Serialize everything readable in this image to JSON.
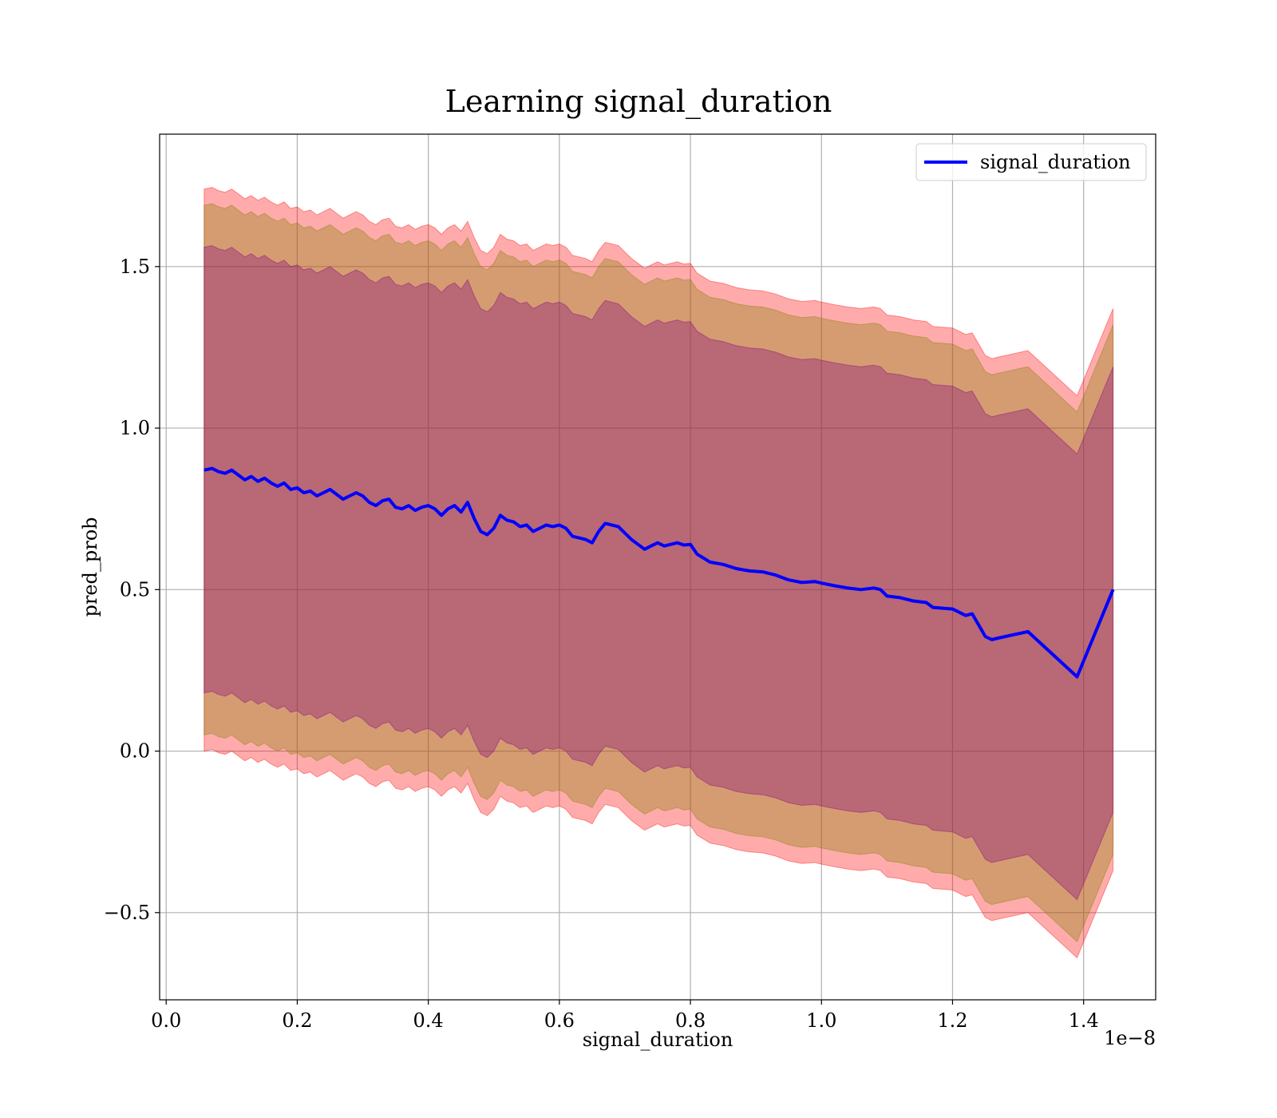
{
  "chart_data": {
    "type": "line",
    "title": "Learning signal_duration",
    "xlabel": "signal_duration",
    "ylabel": "pred_prob",
    "x_scale_label": "1e−8",
    "xlim": [
      -0.01,
      1.51
    ],
    "ylim": [
      -0.77,
      1.91
    ],
    "x_ticks": [
      0.0,
      0.2,
      0.4,
      0.6,
      0.8,
      1.0,
      1.2,
      1.4
    ],
    "x_tick_labels": [
      "0.0",
      "0.2",
      "0.4",
      "0.6",
      "0.8",
      "1.0",
      "1.2",
      "1.4"
    ],
    "y_ticks": [
      -0.5,
      0.0,
      0.5,
      1.0,
      1.5
    ],
    "y_tick_labels": [
      "−0.5",
      "0.0",
      "0.5",
      "1.0",
      "1.5"
    ],
    "grid": true,
    "legend_position": "top-right",
    "series": [
      {
        "name": "signal_duration",
        "color": "#0000ff",
        "x": [
          0.058,
          0.07,
          0.08,
          0.09,
          0.1,
          0.11,
          0.12,
          0.13,
          0.14,
          0.15,
          0.16,
          0.17,
          0.18,
          0.19,
          0.2,
          0.21,
          0.22,
          0.23,
          0.24,
          0.25,
          0.26,
          0.27,
          0.28,
          0.29,
          0.3,
          0.31,
          0.32,
          0.33,
          0.34,
          0.35,
          0.36,
          0.37,
          0.38,
          0.39,
          0.4,
          0.41,
          0.42,
          0.43,
          0.44,
          0.45,
          0.46,
          0.47,
          0.48,
          0.49,
          0.5,
          0.51,
          0.52,
          0.53,
          0.54,
          0.55,
          0.56,
          0.57,
          0.58,
          0.59,
          0.6,
          0.61,
          0.62,
          0.63,
          0.64,
          0.65,
          0.66,
          0.67,
          0.68,
          0.69,
          0.7,
          0.71,
          0.72,
          0.73,
          0.74,
          0.75,
          0.76,
          0.77,
          0.78,
          0.79,
          0.8,
          0.81,
          0.83,
          0.85,
          0.87,
          0.89,
          0.91,
          0.93,
          0.95,
          0.97,
          0.99,
          1.0,
          1.02,
          1.04,
          1.06,
          1.08,
          1.09,
          1.1,
          1.12,
          1.14,
          1.16,
          1.17,
          1.2,
          1.22,
          1.23,
          1.24,
          1.25,
          1.26,
          1.27,
          1.315,
          1.39,
          1.445
        ],
        "y": [
          0.87,
          0.875,
          0.865,
          0.86,
          0.87,
          0.855,
          0.84,
          0.85,
          0.835,
          0.845,
          0.83,
          0.82,
          0.83,
          0.81,
          0.815,
          0.8,
          0.805,
          0.79,
          0.8,
          0.81,
          0.795,
          0.78,
          0.79,
          0.8,
          0.79,
          0.77,
          0.76,
          0.775,
          0.78,
          0.755,
          0.75,
          0.76,
          0.745,
          0.755,
          0.76,
          0.75,
          0.73,
          0.75,
          0.76,
          0.74,
          0.77,
          0.72,
          0.68,
          0.67,
          0.69,
          0.73,
          0.715,
          0.71,
          0.695,
          0.7,
          0.68,
          0.69,
          0.7,
          0.695,
          0.7,
          0.69,
          0.665,
          0.66,
          0.655,
          0.645,
          0.68,
          0.705,
          0.7,
          0.695,
          0.675,
          0.655,
          0.64,
          0.625,
          0.635,
          0.645,
          0.635,
          0.64,
          0.645,
          0.638,
          0.64,
          0.61,
          0.585,
          0.578,
          0.565,
          0.558,
          0.555,
          0.545,
          0.53,
          0.522,
          0.525,
          0.52,
          0.512,
          0.505,
          0.5,
          0.505,
          0.5,
          0.48,
          0.475,
          0.465,
          0.46,
          0.445,
          0.44,
          0.42,
          0.425,
          0.39,
          0.355,
          0.345,
          0.35,
          0.37,
          0.23,
          0.5
        ]
      }
    ],
    "bands": [
      {
        "name": "band_outer",
        "color": "#ff0000",
        "opacity": 0.33,
        "offset": 0.87
      },
      {
        "name": "band_middle",
        "color": "#808000",
        "opacity": 0.33,
        "offset": 0.82
      },
      {
        "name": "band_inner",
        "color": "#800080",
        "opacity": 0.33,
        "offset": 0.69
      }
    ]
  }
}
